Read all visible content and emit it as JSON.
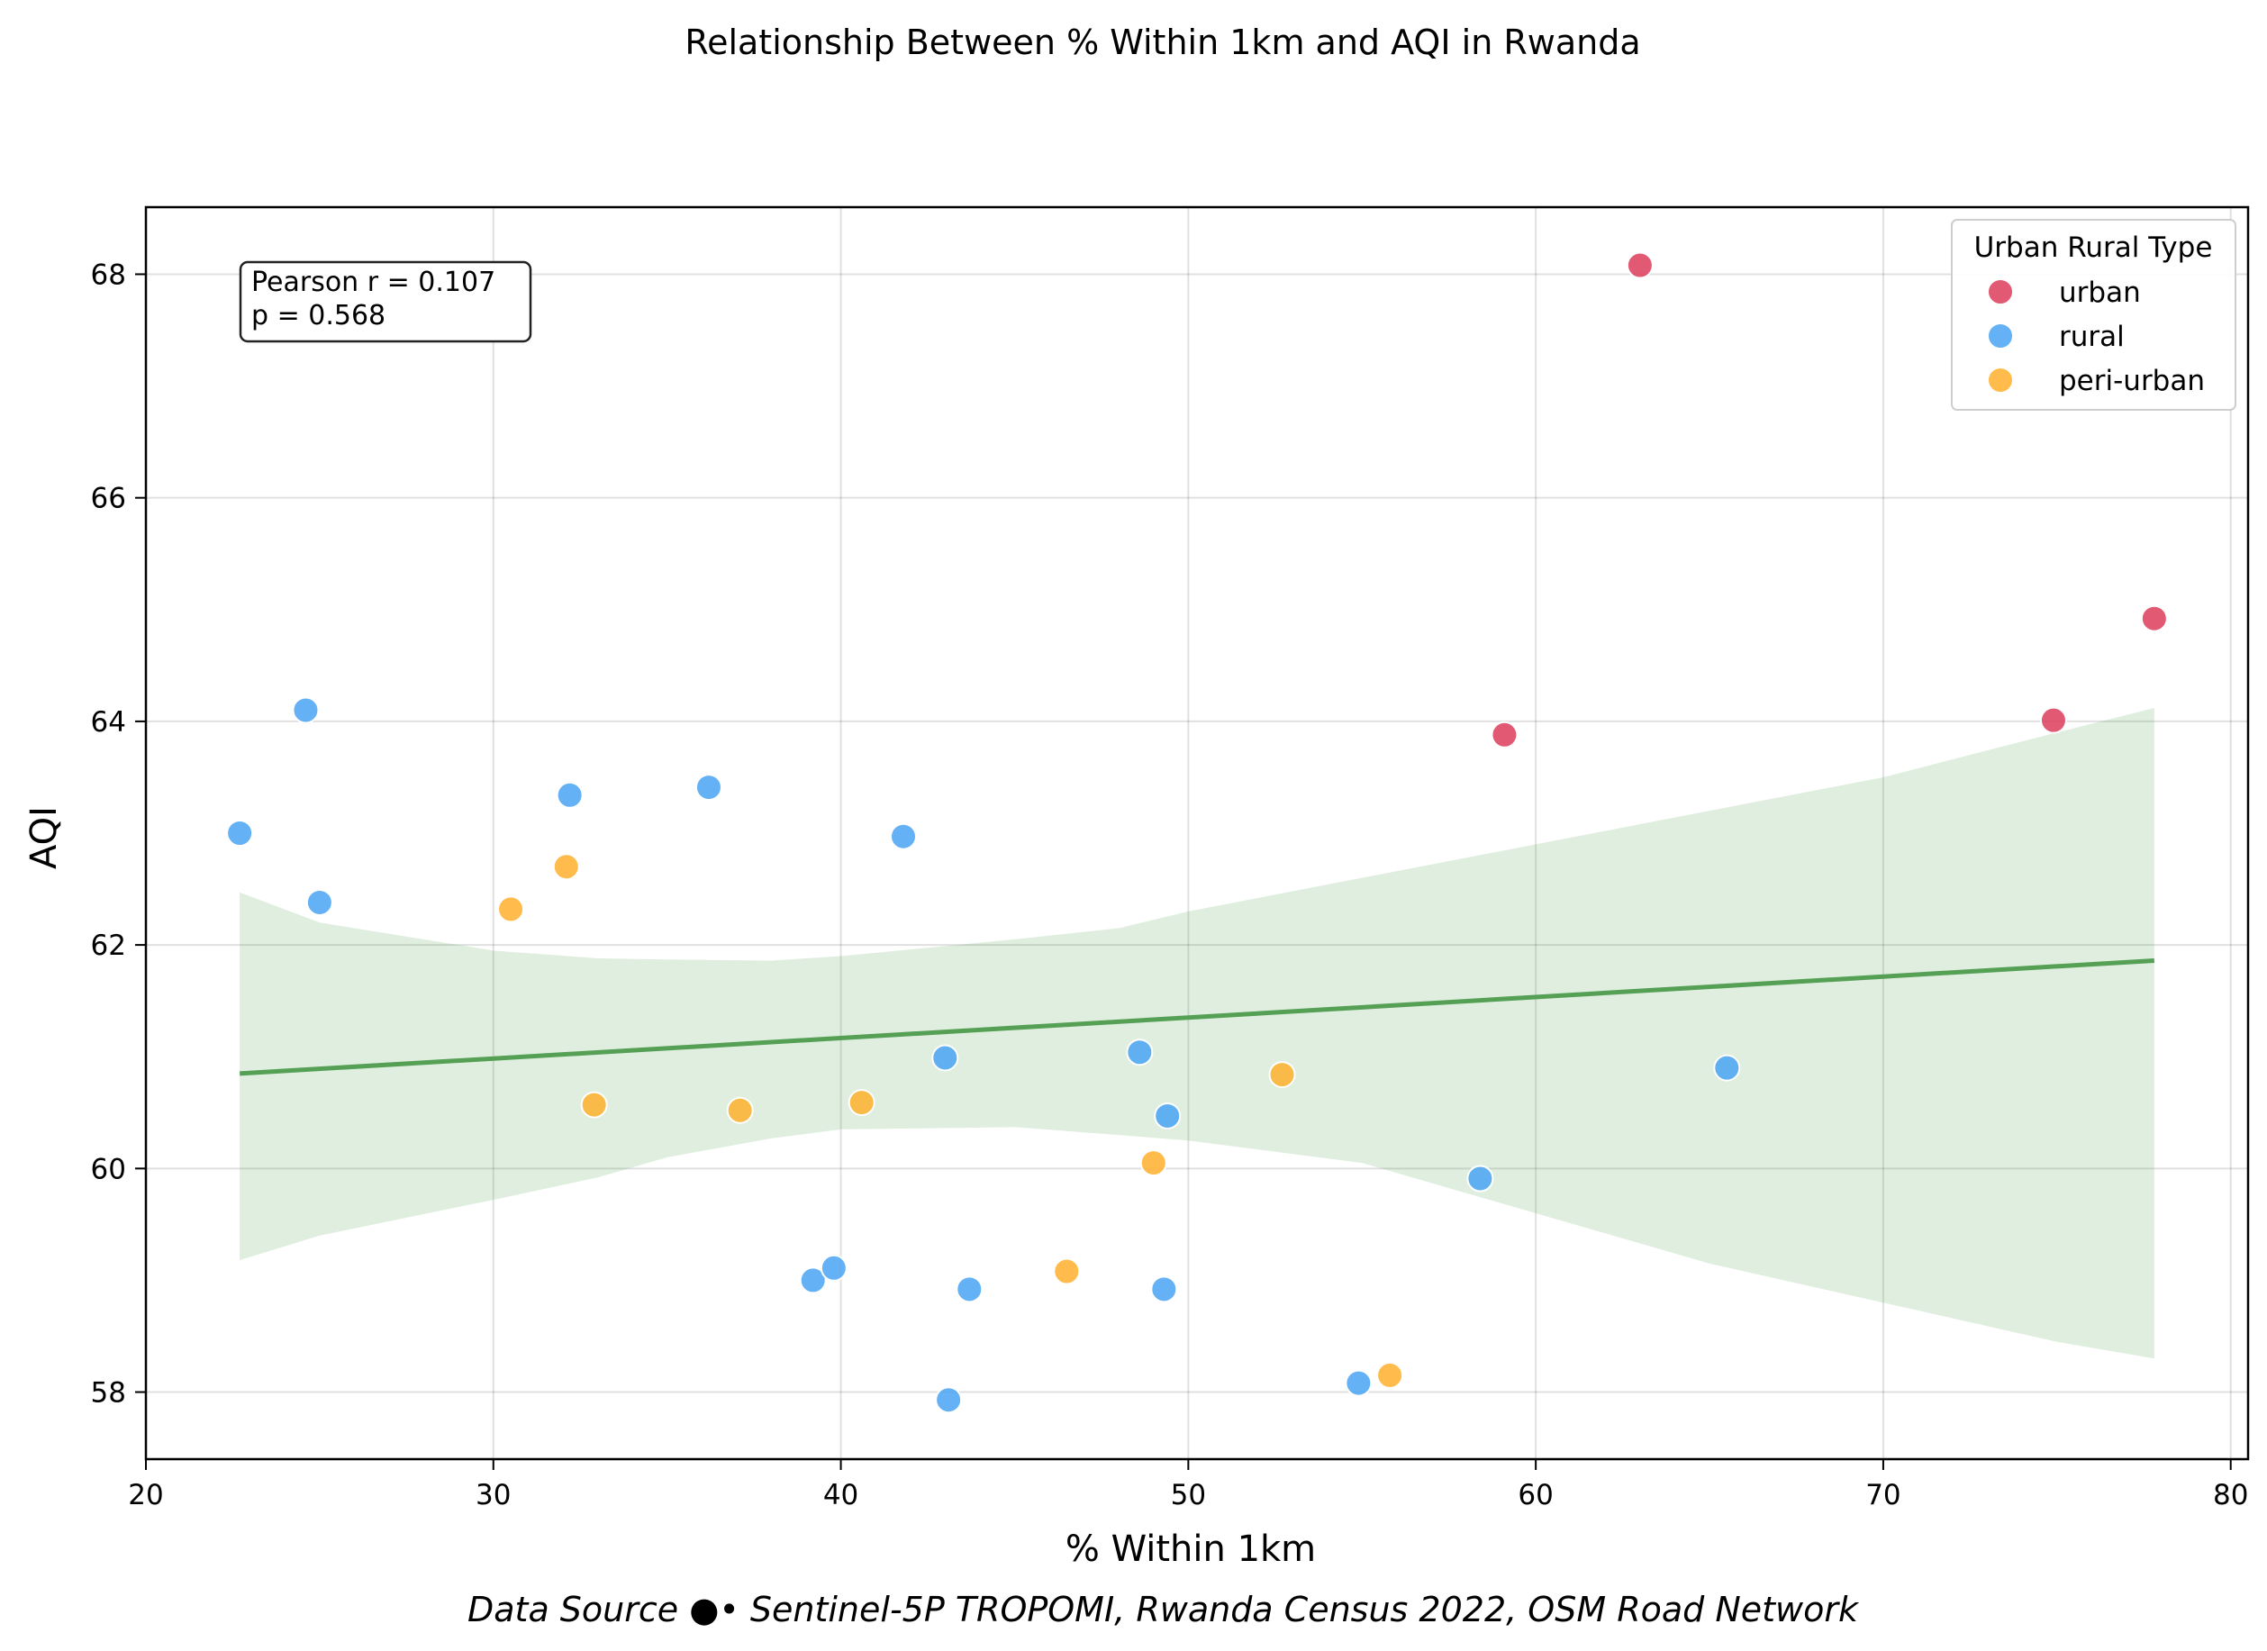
{
  "chart_data": {
    "type": "scatter",
    "title": "Relationship Between % Within 1km and AQI in Rwanda",
    "xlabel": "% Within 1km",
    "ylabel": "AQI",
    "xlim": [
      20,
      80.5
    ],
    "ylim": [
      57.4,
      68.6
    ],
    "xticks": [
      20,
      30,
      40,
      50,
      60,
      70,
      80
    ],
    "yticks": [
      58,
      60,
      62,
      64,
      66,
      68
    ],
    "grid": true,
    "legend": {
      "title": "Urban Rural Type",
      "placement": "top-right"
    },
    "annotation": {
      "line1": "Pearson r = 0.107",
      "line2": "p = 0.568"
    },
    "source": "Data Source ●• Sentinel-5P TROPOMI, Rwanda Census 2022, OSM Road Network",
    "series": [
      {
        "name": "urban",
        "color": "#dc3c5a",
        "x": [
          63.0,
          59.1,
          74.9,
          77.8
        ],
        "y": [
          68.08,
          63.88,
          64.01,
          64.92
        ]
      },
      {
        "name": "rural",
        "color": "#4aa3f5",
        "x": [
          22.7,
          24.6,
          25.0,
          32.2,
          36.2,
          41.8,
          43.0,
          48.6,
          49.4,
          58.4,
          65.5,
          39.2,
          39.8,
          43.7,
          49.3,
          43.1,
          54.9
        ],
        "y": [
          63.0,
          64.1,
          62.38,
          63.34,
          63.41,
          62.97,
          60.99,
          61.04,
          60.47,
          59.91,
          60.9,
          59.0,
          59.11,
          58.92,
          58.92,
          57.93,
          58.08
        ]
      },
      {
        "name": "peri-urban",
        "color": "#ffb02e",
        "x": [
          30.5,
          32.1,
          32.9,
          37.1,
          40.6,
          52.7,
          49.0,
          46.5,
          55.8
        ],
        "y": [
          62.32,
          62.7,
          60.57,
          60.52,
          60.59,
          60.84,
          60.05,
          59.08,
          58.15
        ]
      }
    ],
    "trend": {
      "color": "#55a055",
      "band_color": "#4d9f4d",
      "x": [
        22.7,
        77.8
      ],
      "y": [
        60.85,
        61.86
      ],
      "band_x": [
        22.7,
        25,
        30,
        33,
        35,
        38,
        40,
        45,
        48,
        50,
        55,
        60,
        65,
        70,
        75,
        77.8
      ],
      "band_upper": [
        62.47,
        62.2,
        61.95,
        61.88,
        61.87,
        61.86,
        61.9,
        62.05,
        62.15,
        62.3,
        62.6,
        62.9,
        63.2,
        63.5,
        63.9,
        64.12
      ],
      "band_lower": [
        59.18,
        59.4,
        59.72,
        59.92,
        60.1,
        60.27,
        60.35,
        60.37,
        60.3,
        60.25,
        60.05,
        59.6,
        59.15,
        58.8,
        58.45,
        58.3
      ]
    }
  }
}
